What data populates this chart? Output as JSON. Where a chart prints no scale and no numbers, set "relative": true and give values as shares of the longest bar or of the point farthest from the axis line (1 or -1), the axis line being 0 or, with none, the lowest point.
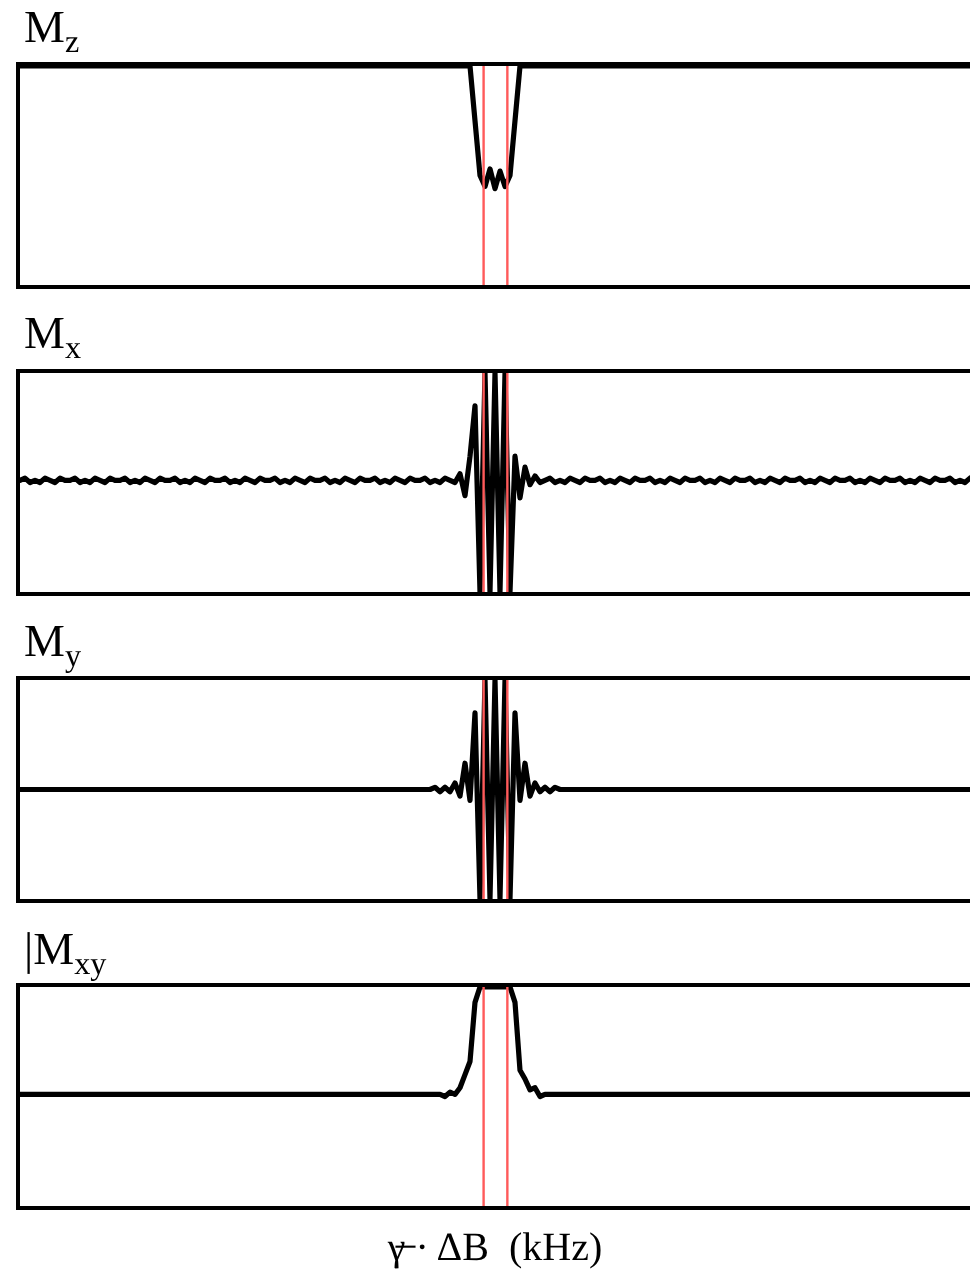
{
  "chart_data": [
    {
      "type": "line",
      "title": "M$_{z}$",
      "relative": true,
      "categories": [
        null,
        null,
        null,
        null,
        null,
        null,
        null,
        null,
        null,
        null,
        null,
        null,
        null,
        null,
        null,
        null,
        null,
        null,
        null,
        null,
        null,
        null,
        null,
        null,
        null,
        null,
        null,
        null,
        null,
        null,
        null,
        null,
        null,
        null,
        null,
        null,
        null,
        null,
        null,
        null,
        null,
        null,
        null,
        null,
        null,
        null,
        null,
        null,
        null,
        null,
        null,
        null,
        null,
        null,
        null,
        null,
        null,
        null,
        null,
        null,
        null,
        null,
        null,
        null,
        null,
        null,
        null,
        null,
        null,
        null,
        null,
        null,
        null,
        null,
        null,
        null,
        null,
        null,
        null,
        null,
        null,
        null,
        null,
        null,
        null,
        null,
        null,
        null,
        null,
        null,
        null,
        null,
        null,
        null,
        null,
        null,
        null,
        null,
        null,
        null,
        null,
        null,
        null,
        null,
        null,
        null,
        null,
        null,
        null,
        null,
        null,
        null,
        null,
        null,
        null,
        null,
        null,
        null,
        null,
        null,
        null,
        null,
        null,
        null,
        null,
        null,
        null,
        null,
        null,
        null,
        null,
        null,
        null,
        null,
        null,
        null,
        null,
        null,
        null,
        null,
        null,
        null,
        null,
        null,
        null,
        null,
        null,
        null,
        null,
        null,
        null,
        null,
        null,
        null,
        null,
        null,
        null,
        null,
        null,
        null,
        null,
        null,
        null,
        null,
        null,
        null,
        null,
        null,
        null,
        null,
        null,
        null,
        null,
        null,
        null,
        null,
        null,
        null,
        null,
        null,
        null,
        null,
        null,
        null,
        null,
        null,
        null,
        null,
        null,
        null,
        null
      ],
      "series": [
        {
          "color": "#000000",
          "values": [
            1,
            1,
            1,
            1,
            1,
            1,
            1,
            1,
            1,
            1,
            1,
            1,
            1,
            1,
            1,
            1,
            1,
            1,
            1,
            1,
            1,
            1,
            1,
            1,
            1,
            1,
            1,
            1,
            1,
            1,
            1,
            1,
            1,
            1,
            1,
            1,
            1,
            1,
            1,
            1,
            1,
            1,
            1,
            1,
            1,
            1,
            1,
            1,
            1,
            1,
            1,
            1,
            1,
            1,
            1,
            1,
            1,
            1,
            1,
            1,
            1,
            1,
            1,
            1,
            1,
            1,
            1,
            1,
            1,
            1,
            1,
            1,
            1,
            1,
            1,
            1,
            1,
            1,
            1,
            1,
            1,
            1,
            1,
            1,
            1,
            1,
            1,
            1,
            1,
            1,
            1,
            0.75,
            0.5,
            0.45,
            0.53,
            0.44,
            0.52,
            0.45,
            0.5,
            0.75,
            1,
            1,
            1,
            1,
            1,
            1,
            1,
            1,
            1,
            1,
            1,
            1,
            1,
            1,
            1,
            1,
            1,
            1,
            1,
            1,
            1,
            1,
            1,
            1,
            1,
            1,
            1,
            1,
            1,
            1,
            1,
            1,
            1,
            1,
            1,
            1,
            1,
            1,
            1,
            1,
            1,
            1,
            1,
            1,
            1,
            1,
            1,
            1,
            1,
            1,
            1,
            1,
            1,
            1,
            1,
            1,
            1,
            1,
            1,
            1,
            1,
            1,
            1,
            1,
            1,
            1,
            1,
            1,
            1,
            1,
            1,
            1,
            1,
            1,
            1,
            1,
            1,
            1,
            1,
            1,
            1,
            1,
            1,
            1,
            1,
            1,
            1,
            1,
            1,
            1,
            1
          ]
        }
      ]
    },
    {
      "type": "line",
      "title": "M$_{x}$",
      "relative": true,
      "categories": [
        null,
        null,
        null,
        null,
        null,
        null,
        null,
        null,
        null,
        null,
        null,
        null,
        null,
        null,
        null,
        null,
        null,
        null,
        null,
        null,
        null,
        null,
        null,
        null,
        null,
        null,
        null,
        null,
        null,
        null,
        null,
        null,
        null,
        null,
        null,
        null,
        null,
        null,
        null,
        null,
        null,
        null,
        null,
        null,
        null,
        null,
        null,
        null,
        null,
        null,
        null,
        null,
        null,
        null,
        null,
        null,
        null,
        null,
        null,
        null,
        null,
        null,
        null,
        null,
        null,
        null,
        null,
        null,
        null,
        null,
        null,
        null,
        null,
        null,
        null,
        null,
        null,
        null,
        null,
        null,
        null,
        null,
        null,
        null,
        null,
        null,
        null,
        null,
        null,
        null,
        null,
        null,
        null,
        null,
        null,
        null,
        null,
        null,
        null,
        null,
        null,
        null,
        null,
        null,
        null,
        null,
        null,
        null,
        null,
        null,
        null,
        null,
        null,
        null,
        null,
        null,
        null,
        null,
        null,
        null,
        null,
        null,
        null,
        null,
        null,
        null,
        null,
        null,
        null,
        null,
        null,
        null,
        null,
        null,
        null,
        null,
        null,
        null,
        null,
        null,
        null,
        null,
        null,
        null,
        null,
        null,
        null,
        null,
        null,
        null,
        null,
        null,
        null,
        null,
        null,
        null,
        null,
        null,
        null,
        null,
        null,
        null,
        null,
        null,
        null,
        null,
        null,
        null,
        null,
        null,
        null,
        null,
        null,
        null,
        null,
        null,
        null,
        null,
        null,
        null,
        null,
        null,
        null,
        null,
        null,
        null,
        null,
        null,
        null,
        null,
        null
      ],
      "series": [
        {
          "color": "#000000",
          "values": [
            0.51,
            0.52,
            0.5,
            0.51,
            0.5,
            0.52,
            0.51,
            0.5,
            0.52,
            0.51,
            0.51,
            0.52,
            0.5,
            0.51,
            0.5,
            0.52,
            0.51,
            0.5,
            0.52,
            0.51,
            0.51,
            0.52,
            0.5,
            0.51,
            0.5,
            0.52,
            0.51,
            0.5,
            0.52,
            0.51,
            0.51,
            0.52,
            0.5,
            0.51,
            0.5,
            0.52,
            0.51,
            0.5,
            0.52,
            0.51,
            0.51,
            0.52,
            0.5,
            0.51,
            0.5,
            0.52,
            0.51,
            0.5,
            0.52,
            0.51,
            0.51,
            0.52,
            0.5,
            0.51,
            0.5,
            0.52,
            0.51,
            0.5,
            0.52,
            0.51,
            0.51,
            0.52,
            0.5,
            0.51,
            0.5,
            0.52,
            0.51,
            0.5,
            0.52,
            0.51,
            0.51,
            0.52,
            0.5,
            0.51,
            0.5,
            0.52,
            0.51,
            0.5,
            0.52,
            0.51,
            0.51,
            0.52,
            0.5,
            0.51,
            0.5,
            0.52,
            0.51,
            0.5,
            0.54,
            0.44,
            0.62,
            0.85,
            0,
            1,
            0,
            1,
            0,
            1,
            0,
            0.62,
            0.43,
            0.57,
            0.49,
            0.53,
            0.5,
            0.51,
            0.52,
            0.5,
            0.51,
            0.5,
            0.52,
            0.51,
            0.5,
            0.52,
            0.51,
            0.51,
            0.52,
            0.5,
            0.51,
            0.5,
            0.52,
            0.51,
            0.5,
            0.52,
            0.51,
            0.51,
            0.52,
            0.5,
            0.51,
            0.5,
            0.52,
            0.51,
            0.5,
            0.52,
            0.51,
            0.51,
            0.52,
            0.5,
            0.51,
            0.5,
            0.52,
            0.51,
            0.5,
            0.52,
            0.51,
            0.51,
            0.52,
            0.5,
            0.51,
            0.5,
            0.52,
            0.51,
            0.5,
            0.52,
            0.51,
            0.51,
            0.52,
            0.5,
            0.51,
            0.5,
            0.52,
            0.51,
            0.5,
            0.52,
            0.51,
            0.51,
            0.52,
            0.5,
            0.51,
            0.5,
            0.52,
            0.51,
            0.5,
            0.52,
            0.51,
            0.51,
            0.52,
            0.5,
            0.51,
            0.5,
            0.52,
            0.51,
            0.5,
            0.52,
            0.51,
            0.51,
            0.52,
            0.5,
            0.51,
            0.5,
            0.52
          ]
        }
      ]
    },
    {
      "type": "line",
      "title": "M$_{y}$",
      "relative": true,
      "categories": [
        null,
        null,
        null,
        null,
        null,
        null,
        null,
        null,
        null,
        null,
        null,
        null,
        null,
        null,
        null,
        null,
        null,
        null,
        null,
        null,
        null,
        null,
        null,
        null,
        null,
        null,
        null,
        null,
        null,
        null,
        null,
        null,
        null,
        null,
        null,
        null,
        null,
        null,
        null,
        null,
        null,
        null,
        null,
        null,
        null,
        null,
        null,
        null,
        null,
        null,
        null,
        null,
        null,
        null,
        null,
        null,
        null,
        null,
        null,
        null,
        null,
        null,
        null,
        null,
        null,
        null,
        null,
        null,
        null,
        null,
        null,
        null,
        null,
        null,
        null,
        null,
        null,
        null,
        null,
        null,
        null,
        null,
        null,
        null,
        null,
        null,
        null,
        null,
        null,
        null,
        null,
        null,
        null,
        null,
        null,
        null,
        null,
        null,
        null,
        null,
        null,
        null,
        null,
        null,
        null,
        null,
        null,
        null,
        null,
        null,
        null,
        null,
        null,
        null,
        null,
        null,
        null,
        null,
        null,
        null,
        null,
        null,
        null,
        null,
        null,
        null,
        null,
        null,
        null,
        null,
        null,
        null,
        null,
        null,
        null,
        null,
        null,
        null,
        null,
        null,
        null,
        null,
        null,
        null,
        null,
        null,
        null,
        null,
        null,
        null,
        null,
        null,
        null,
        null,
        null,
        null,
        null,
        null,
        null,
        null,
        null,
        null,
        null,
        null,
        null,
        null,
        null,
        null,
        null,
        null,
        null,
        null,
        null,
        null,
        null,
        null,
        null,
        null,
        null,
        null,
        null,
        null,
        null,
        null,
        null,
        null,
        null,
        null,
        null,
        null,
        null
      ],
      "series": [
        {
          "color": "#000000",
          "values": [
            0.5,
            0.5,
            0.5,
            0.5,
            0.5,
            0.5,
            0.5,
            0.5,
            0.5,
            0.5,
            0.5,
            0.5,
            0.5,
            0.5,
            0.5,
            0.5,
            0.5,
            0.5,
            0.5,
            0.5,
            0.5,
            0.5,
            0.5,
            0.5,
            0.5,
            0.5,
            0.5,
            0.5,
            0.5,
            0.5,
            0.5,
            0.5,
            0.5,
            0.5,
            0.5,
            0.5,
            0.5,
            0.5,
            0.5,
            0.5,
            0.5,
            0.5,
            0.5,
            0.5,
            0.5,
            0.5,
            0.5,
            0.5,
            0.5,
            0.5,
            0.5,
            0.5,
            0.5,
            0.5,
            0.5,
            0.5,
            0.5,
            0.5,
            0.5,
            0.5,
            0.5,
            0.5,
            0.5,
            0.5,
            0.5,
            0.5,
            0.5,
            0.5,
            0.5,
            0.5,
            0.5,
            0.5,
            0.5,
            0.5,
            0.5,
            0.5,
            0.5,
            0.5,
            0.5,
            0.5,
            0.5,
            0.5,
            0.5,
            0.51,
            0.49,
            0.51,
            0.49,
            0.53,
            0.47,
            0.62,
            0.45,
            0.85,
            0,
            1,
            0,
            1,
            0,
            1,
            0,
            0.85,
            0.45,
            0.62,
            0.47,
            0.53,
            0.49,
            0.51,
            0.49,
            0.51,
            0.5,
            0.5,
            0.5,
            0.5,
            0.5,
            0.5,
            0.5,
            0.5,
            0.5,
            0.5,
            0.5,
            0.5,
            0.5,
            0.5,
            0.5,
            0.5,
            0.5,
            0.5,
            0.5,
            0.5,
            0.5,
            0.5,
            0.5,
            0.5,
            0.5,
            0.5,
            0.5,
            0.5,
            0.5,
            0.5,
            0.5,
            0.5,
            0.5,
            0.5,
            0.5,
            0.5,
            0.5,
            0.5,
            0.5,
            0.5,
            0.5,
            0.5,
            0.5,
            0.5,
            0.5,
            0.5,
            0.5,
            0.5,
            0.5,
            0.5,
            0.5,
            0.5,
            0.5,
            0.5,
            0.5,
            0.5,
            0.5,
            0.5,
            0.5,
            0.5,
            0.5,
            0.5,
            0.5,
            0.5,
            0.5,
            0.5,
            0.5,
            0.5,
            0.5,
            0.5,
            0.5,
            0.5,
            0.5,
            0.5,
            0.5,
            0.5,
            0.5,
            0.5,
            0.5,
            0.5,
            0.5,
            0.5,
            0.5
          ]
        }
      ]
    },
    {
      "type": "line",
      "title": "|M$_{xy}$",
      "xlabel": "γ̶ · ΔB  (kHz)",
      "relative": true,
      "categories": [
        null,
        null,
        null,
        null,
        null,
        null,
        null,
        null,
        null,
        null,
        null,
        null,
        null,
        null,
        null,
        null,
        null,
        null,
        null,
        null,
        null,
        null,
        null,
        null,
        null,
        null,
        null,
        null,
        null,
        null,
        null,
        null,
        null,
        null,
        null,
        null,
        null,
        null,
        null,
        null,
        null,
        null,
        null,
        null,
        null,
        null,
        null,
        null,
        null,
        null,
        null,
        null,
        null,
        null,
        null,
        null,
        null,
        null,
        null,
        null,
        null,
        null,
        null,
        null,
        null,
        null,
        null,
        null,
        null,
        null,
        null,
        null,
        null,
        null,
        null,
        null,
        null,
        null,
        null,
        null,
        null,
        null,
        null,
        null,
        null,
        null,
        null,
        null,
        null,
        null,
        null,
        null,
        null,
        null,
        null,
        null,
        null,
        null,
        null,
        null,
        null,
        null,
        null,
        null,
        null,
        null,
        null,
        null,
        null,
        null,
        null,
        null,
        null,
        null,
        null,
        null,
        null,
        null,
        null,
        null,
        null,
        null,
        null,
        null,
        null,
        null,
        null,
        null,
        null,
        null,
        null,
        null,
        null,
        null,
        null,
        null,
        null,
        null,
        null,
        null,
        null,
        null,
        null,
        null,
        null,
        null,
        null,
        null,
        null,
        null,
        null,
        null,
        null,
        null,
        null,
        null,
        null,
        null,
        null,
        null,
        null,
        null,
        null,
        null,
        null,
        null,
        null,
        null,
        null,
        null,
        null,
        null,
        null,
        null,
        null,
        null,
        null,
        null,
        null,
        null,
        null,
        null,
        null,
        null,
        null,
        null,
        null,
        null,
        null,
        null,
        null
      ],
      "series": [
        {
          "color": "#000000",
          "values": [
            0.51,
            0.51,
            0.51,
            0.51,
            0.51,
            0.51,
            0.51,
            0.51,
            0.51,
            0.51,
            0.51,
            0.51,
            0.51,
            0.51,
            0.51,
            0.51,
            0.51,
            0.51,
            0.51,
            0.51,
            0.51,
            0.51,
            0.51,
            0.51,
            0.51,
            0.51,
            0.51,
            0.51,
            0.51,
            0.51,
            0.51,
            0.51,
            0.51,
            0.51,
            0.51,
            0.51,
            0.51,
            0.51,
            0.51,
            0.51,
            0.51,
            0.51,
            0.51,
            0.51,
            0.51,
            0.51,
            0.51,
            0.51,
            0.51,
            0.51,
            0.51,
            0.51,
            0.51,
            0.51,
            0.51,
            0.51,
            0.51,
            0.51,
            0.51,
            0.51,
            0.51,
            0.51,
            0.51,
            0.51,
            0.51,
            0.51,
            0.51,
            0.51,
            0.51,
            0.51,
            0.51,
            0.51,
            0.51,
            0.51,
            0.51,
            0.51,
            0.51,
            0.51,
            0.51,
            0.51,
            0.51,
            0.51,
            0.51,
            0.51,
            0.51,
            0.5,
            0.52,
            0.51,
            0.54,
            0.6,
            0.66,
            0.93,
            1,
            1,
            1,
            1,
            1,
            1,
            1,
            0.93,
            0.62,
            0.58,
            0.53,
            0.54,
            0.5,
            0.51,
            0.51,
            0.51,
            0.51,
            0.51,
            0.51,
            0.51,
            0.51,
            0.51,
            0.51,
            0.51,
            0.51,
            0.51,
            0.51,
            0.51,
            0.51,
            0.51,
            0.51,
            0.51,
            0.51,
            0.51,
            0.51,
            0.51,
            0.51,
            0.51,
            0.51,
            0.51,
            0.51,
            0.51,
            0.51,
            0.51,
            0.51,
            0.51,
            0.51,
            0.51,
            0.51,
            0.51,
            0.51,
            0.51,
            0.51,
            0.51,
            0.51,
            0.51,
            0.51,
            0.51,
            0.51,
            0.51,
            0.51,
            0.51,
            0.51,
            0.51,
            0.51,
            0.51,
            0.51,
            0.51,
            0.51,
            0.51,
            0.51,
            0.51,
            0.51,
            0.51,
            0.51,
            0.51,
            0.51,
            0.51,
            0.51,
            0.51,
            0.51,
            0.51,
            0.51,
            0.51,
            0.51,
            0.51,
            0.51,
            0.51,
            0.51,
            0.51,
            0.51,
            0.51,
            0.51,
            0.51,
            0.51,
            0.51,
            0.51,
            0.51,
            0.51
          ]
        }
      ]
    }
  ]
}
